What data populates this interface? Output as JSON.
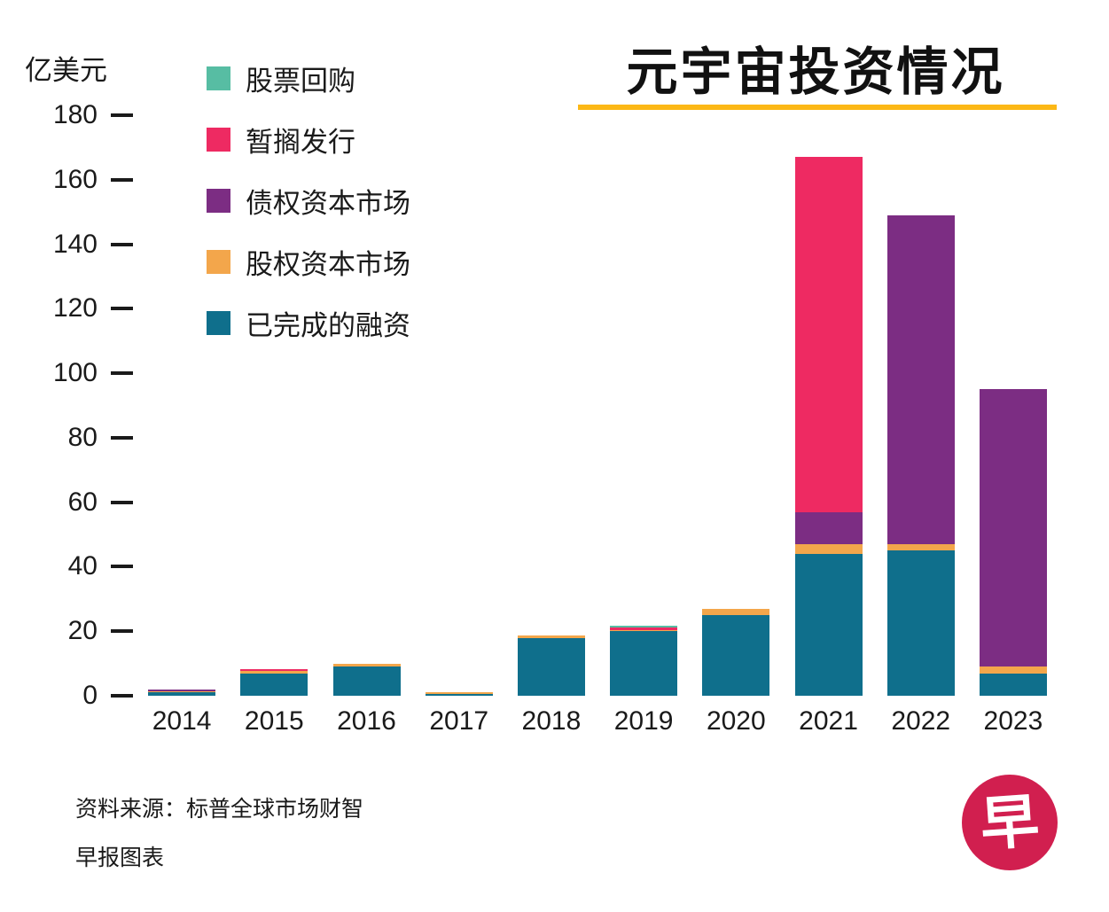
{
  "header": {
    "title": "元宇宙投资情况",
    "underline_color": "#fcb815",
    "unit_label": "亿美元"
  },
  "chart_data": {
    "type": "bar",
    "stacked": true,
    "title": "元宇宙投资情况",
    "unit_label": "亿美元",
    "xlabel": "",
    "ylabel": "亿美元",
    "categories": [
      "2014",
      "2015",
      "2016",
      "2017",
      "2018",
      "2019",
      "2020",
      "2021",
      "2022",
      "2023"
    ],
    "ylim": [
      0,
      180
    ],
    "yticks": [
      180,
      160,
      140,
      120,
      100,
      80,
      60,
      40,
      20,
      0
    ],
    "grid": false,
    "legend_position": "top-left",
    "legend": [
      "股票回购",
      "暂搁发行",
      "债权资本市场",
      "股权资本市场",
      "已完成的融资"
    ],
    "series": [
      {
        "name": "已完成的融资",
        "color": "#0f6f8c",
        "values": [
          1,
          7,
          9,
          0.5,
          18,
          20,
          25,
          44,
          45,
          7
        ]
      },
      {
        "name": "股权资本市场",
        "color": "#f3a64b",
        "values": [
          0.3,
          0.6,
          0.8,
          0.6,
          0.6,
          0.4,
          2,
          3,
          2,
          2
        ]
      },
      {
        "name": "债权资本市场",
        "color": "#7c2d83",
        "values": [
          0.5,
          0,
          0,
          0,
          0,
          0,
          0,
          10,
          102,
          86
        ]
      },
      {
        "name": "暂搁发行",
        "color": "#ee2a62",
        "values": [
          0,
          0.6,
          0,
          0,
          0,
          0.8,
          0,
          110,
          0,
          0
        ]
      },
      {
        "name": "股票回购",
        "color": "#57bda3",
        "values": [
          0,
          0,
          0,
          0,
          0,
          0.5,
          0,
          0,
          0,
          0
        ]
      }
    ]
  },
  "footer": {
    "source_line": "资料来源：标普全球市场财智",
    "credit_line": "早报图表",
    "logo_char": "早",
    "logo_color": "#d11f4f"
  }
}
